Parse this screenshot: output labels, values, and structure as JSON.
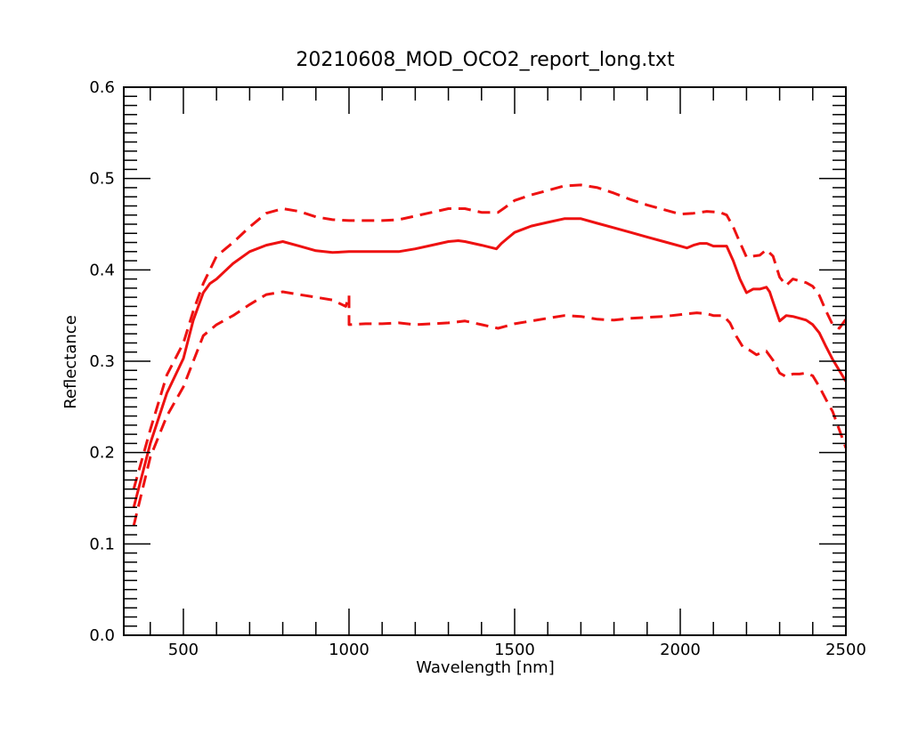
{
  "chart_data": {
    "type": "line",
    "title": "20210608_MOD_OCO2_report_long.txt",
    "xlabel": "Wavelength [nm]",
    "ylabel": "Reflectance",
    "xlim": [
      320,
      2500
    ],
    "ylim": [
      0,
      0.6
    ],
    "x_ticks": [
      500,
      1000,
      1500,
      2000,
      2500
    ],
    "x_tick_labels": [
      "500",
      "1000",
      "1500",
      "2000",
      "2500"
    ],
    "x_minor_step": 100,
    "y_ticks": [
      0.0,
      0.1,
      0.2,
      0.3,
      0.4,
      0.5,
      0.6
    ],
    "y_tick_labels": [
      "0.0",
      "0.1",
      "0.2",
      "0.3",
      "0.4",
      "0.5",
      "0.6"
    ],
    "y_minor_step": 0.01,
    "grid": false,
    "legend": "none",
    "colors": {
      "series": "#ee1111",
      "axes": "#000000"
    },
    "series": [
      {
        "style": "solid",
        "x": [
          350,
          400,
          450,
          500,
          530,
          560,
          580,
          600,
          650,
          700,
          750,
          800,
          850,
          900,
          950,
          1000,
          1050,
          1100,
          1150,
          1200,
          1250,
          1300,
          1330,
          1350,
          1400,
          1445,
          1460,
          1480,
          1500,
          1550,
          1600,
          1650,
          1700,
          1750,
          1800,
          1850,
          1900,
          1950,
          2000,
          2020,
          2040,
          2060,
          2080,
          2100,
          2120,
          2140,
          2160,
          2180,
          2200,
          2220,
          2240,
          2260,
          2270,
          2280,
          2300,
          2320,
          2340,
          2360,
          2380,
          2400,
          2420,
          2440,
          2460,
          2480,
          2500
        ],
        "values": [
          0.14,
          0.21,
          0.265,
          0.303,
          0.345,
          0.375,
          0.385,
          0.39,
          0.407,
          0.42,
          0.427,
          0.431,
          0.426,
          0.421,
          0.419,
          0.42,
          0.42,
          0.42,
          0.42,
          0.423,
          0.427,
          0.431,
          0.432,
          0.431,
          0.427,
          0.423,
          0.429,
          0.435,
          0.441,
          0.448,
          0.452,
          0.456,
          0.456,
          0.451,
          0.446,
          0.441,
          0.436,
          0.431,
          0.426,
          0.424,
          0.427,
          0.429,
          0.429,
          0.426,
          0.426,
          0.426,
          0.41,
          0.39,
          0.375,
          0.379,
          0.379,
          0.381,
          0.376,
          0.365,
          0.344,
          0.35,
          0.349,
          0.347,
          0.345,
          0.34,
          0.331,
          0.316,
          0.302,
          0.29,
          0.278
        ]
      },
      {
        "style": "dashed",
        "x": [
          350,
          400,
          450,
          500,
          530,
          560,
          600,
          650,
          700,
          750,
          800,
          850,
          900,
          950,
          1000,
          1100,
          1150,
          1200,
          1250,
          1300,
          1350,
          1400,
          1450,
          1470,
          1500,
          1550,
          1600,
          1650,
          1700,
          1750,
          1800,
          1850,
          1900,
          1950,
          2000,
          2040,
          2080,
          2120,
          2140,
          2160,
          2180,
          2200,
          2220,
          2240,
          2260,
          2280,
          2300,
          2320,
          2340,
          2360,
          2380,
          2400,
          2420,
          2440,
          2460,
          2480,
          2500
        ],
        "values": [
          0.16,
          0.225,
          0.285,
          0.32,
          0.355,
          0.385,
          0.415,
          0.43,
          0.447,
          0.462,
          0.467,
          0.464,
          0.458,
          0.455,
          0.454,
          0.454,
          0.455,
          0.459,
          0.463,
          0.467,
          0.467,
          0.463,
          0.463,
          0.468,
          0.476,
          0.482,
          0.487,
          0.492,
          0.493,
          0.49,
          0.484,
          0.477,
          0.471,
          0.466,
          0.461,
          0.462,
          0.464,
          0.463,
          0.46,
          0.447,
          0.43,
          0.414,
          0.415,
          0.416,
          0.422,
          0.415,
          0.392,
          0.383,
          0.39,
          0.388,
          0.386,
          0.382,
          0.372,
          0.355,
          0.34,
          0.336,
          0.346
        ]
      },
      {
        "style": "dashed",
        "x": [
          350,
          400,
          450,
          500,
          530,
          560,
          600,
          650,
          700,
          750,
          800,
          850,
          900,
          950,
          990,
          1000,
          1000,
          1050,
          1100,
          1150,
          1200,
          1250,
          1300,
          1350,
          1400,
          1450,
          1500,
          1550,
          1600,
          1650,
          1700,
          1750,
          1800,
          1850,
          1900,
          1950,
          2000,
          2050,
          2080,
          2100,
          2130,
          2150,
          2170,
          2190,
          2210,
          2230,
          2250,
          2260,
          2280,
          2300,
          2320,
          2340,
          2360,
          2380,
          2400,
          2420,
          2440,
          2460,
          2480,
          2500
        ],
        "values": [
          0.12,
          0.195,
          0.24,
          0.272,
          0.3,
          0.328,
          0.34,
          0.35,
          0.362,
          0.373,
          0.376,
          0.373,
          0.37,
          0.367,
          0.36,
          0.372,
          0.34,
          0.341,
          0.341,
          0.342,
          0.34,
          0.341,
          0.342,
          0.344,
          0.34,
          0.336,
          0.341,
          0.344,
          0.347,
          0.35,
          0.349,
          0.346,
          0.345,
          0.347,
          0.348,
          0.349,
          0.351,
          0.353,
          0.352,
          0.35,
          0.35,
          0.342,
          0.327,
          0.315,
          0.312,
          0.307,
          0.31,
          0.311,
          0.301,
          0.287,
          0.283,
          0.286,
          0.286,
          0.287,
          0.284,
          0.272,
          0.258,
          0.245,
          0.225,
          0.205
        ]
      }
    ]
  }
}
